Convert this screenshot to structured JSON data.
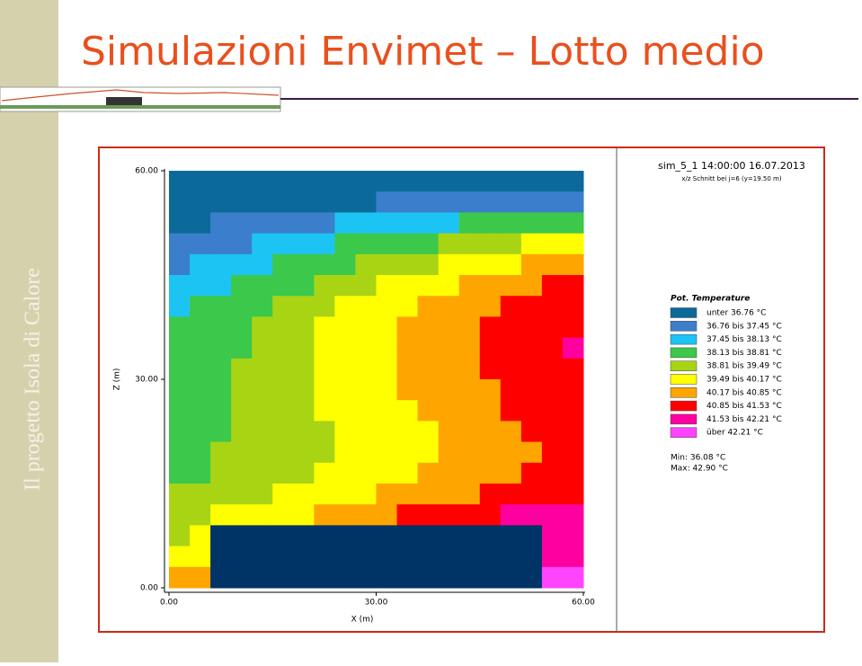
{
  "sidebar": "Il progetto Isola di Calore",
  "title": "Simulazioni Envimet – Lotto medio",
  "chart_data": {
    "type": "heatmap",
    "header": "sim_5_1 14:00:00 16.07.2013",
    "subheader": "x/z Schnitt bei j=6 (y=19.50 m)",
    "xlabel": "X (m)",
    "ylabel": "Z (m)",
    "xlim": [
      0,
      60
    ],
    "ylim": [
      0,
      60
    ],
    "xticks": [
      {
        "value": 0,
        "label": "0.00"
      },
      {
        "value": 30,
        "label": "30.00"
      },
      {
        "value": 60,
        "label": "60.00"
      }
    ],
    "yticks": [
      {
        "value": 0,
        "label": "0.00"
      },
      {
        "value": 30,
        "label": "30.00"
      },
      {
        "value": 60,
        "label": "60.00"
      }
    ],
    "legend_title": "Pot. Temperature",
    "legend": [
      {
        "label": "unter 36.76 °C",
        "color": "#0b6a9a"
      },
      {
        "label": "36.76 bis 37.45 °C",
        "color": "#3b7fcc"
      },
      {
        "label": "37.45 bis 38.13 °C",
        "color": "#1cc4f4"
      },
      {
        "label": "38.13 bis 38.81 °C",
        "color": "#3cc84a"
      },
      {
        "label": "38.81 bis 39.49 °C",
        "color": "#a8d414"
      },
      {
        "label": "39.49 bis 40.17 °C",
        "color": "#ffff00"
      },
      {
        "label": "40.17 bis 40.85 °C",
        "color": "#ffa500"
      },
      {
        "label": "40.85 bis 41.53 °C",
        "color": "#ff0000"
      },
      {
        "label": "41.53 bis 42.21 °C",
        "color": "#ff00a0"
      },
      {
        "label": "über 42.21 °C",
        "color": "#ff44ff"
      }
    ],
    "building_color": "#003366",
    "min_label": "Min: 36.08 °C",
    "max_label": "Max: 42.90 °C",
    "grid": [
      [
        0,
        0,
        0,
        0,
        0,
        0,
        0,
        0,
        0,
        0,
        0,
        0,
        0,
        0,
        0,
        0,
        0,
        0,
        0,
        0
      ],
      [
        0,
        0,
        0,
        0,
        0,
        0,
        0,
        0,
        0,
        0,
        1,
        1,
        1,
        1,
        1,
        1,
        1,
        1,
        1,
        1
      ],
      [
        0,
        0,
        1,
        1,
        1,
        1,
        1,
        1,
        2,
        2,
        2,
        2,
        2,
        2,
        3,
        3,
        3,
        3,
        3,
        3
      ],
      [
        1,
        1,
        1,
        1,
        2,
        2,
        2,
        2,
        3,
        3,
        3,
        3,
        3,
        4,
        4,
        4,
        4,
        5,
        5,
        5
      ],
      [
        1,
        2,
        2,
        2,
        2,
        3,
        3,
        3,
        3,
        4,
        4,
        4,
        4,
        5,
        5,
        5,
        5,
        6,
        6,
        6
      ],
      [
        2,
        2,
        2,
        3,
        3,
        3,
        3,
        4,
        4,
        4,
        5,
        5,
        5,
        5,
        6,
        6,
        6,
        6,
        7,
        7
      ],
      [
        2,
        3,
        3,
        3,
        3,
        4,
        4,
        4,
        5,
        5,
        5,
        5,
        6,
        6,
        6,
        6,
        7,
        7,
        7,
        7
      ],
      [
        3,
        3,
        3,
        3,
        4,
        4,
        4,
        5,
        5,
        5,
        5,
        6,
        6,
        6,
        6,
        7,
        7,
        7,
        7,
        7
      ],
      [
        3,
        3,
        3,
        3,
        4,
        4,
        4,
        5,
        5,
        5,
        5,
        6,
        6,
        6,
        6,
        7,
        7,
        7,
        7,
        8
      ],
      [
        3,
        3,
        3,
        4,
        4,
        4,
        4,
        5,
        5,
        5,
        5,
        6,
        6,
        6,
        6,
        7,
        7,
        7,
        7,
        7
      ],
      [
        3,
        3,
        3,
        4,
        4,
        4,
        4,
        5,
        5,
        5,
        5,
        6,
        6,
        6,
        6,
        6,
        7,
        7,
        7,
        7
      ],
      [
        3,
        3,
        3,
        4,
        4,
        4,
        4,
        5,
        5,
        5,
        5,
        5,
        6,
        6,
        6,
        6,
        7,
        7,
        7,
        7
      ],
      [
        3,
        3,
        3,
        4,
        4,
        4,
        4,
        4,
        5,
        5,
        5,
        5,
        5,
        6,
        6,
        6,
        6,
        7,
        7,
        7
      ],
      [
        3,
        3,
        4,
        4,
        4,
        4,
        4,
        4,
        5,
        5,
        5,
        5,
        5,
        6,
        6,
        6,
        6,
        6,
        7,
        7
      ],
      [
        3,
        3,
        4,
        4,
        4,
        4,
        4,
        5,
        5,
        5,
        5,
        5,
        6,
        6,
        6,
        6,
        6,
        7,
        7,
        7
      ],
      [
        4,
        4,
        4,
        4,
        4,
        5,
        5,
        5,
        5,
        5,
        6,
        6,
        6,
        6,
        6,
        7,
        7,
        7,
        7,
        7
      ],
      [
        4,
        4,
        5,
        5,
        5,
        5,
        5,
        6,
        6,
        6,
        6,
        7,
        7,
        7,
        7,
        7,
        8,
        8,
        8,
        8
      ],
      [
        4,
        5,
        null,
        null,
        null,
        null,
        null,
        null,
        null,
        null,
        null,
        null,
        null,
        null,
        null,
        null,
        null,
        null,
        8,
        8
      ],
      [
        5,
        5,
        null,
        null,
        null,
        null,
        null,
        null,
        null,
        null,
        null,
        null,
        null,
        null,
        null,
        null,
        null,
        null,
        8,
        8
      ],
      [
        6,
        6,
        null,
        null,
        null,
        null,
        null,
        null,
        null,
        null,
        null,
        null,
        null,
        null,
        null,
        null,
        null,
        null,
        9,
        9
      ]
    ]
  }
}
